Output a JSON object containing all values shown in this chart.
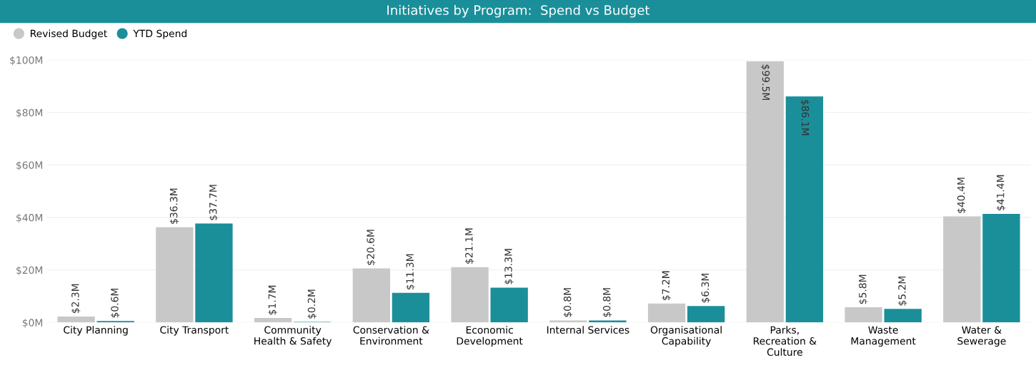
{
  "chart_data": {
    "type": "bar",
    "title": "Initiatives by Program:  Spend vs Budget",
    "categories": [
      "City Planning",
      "City Transport",
      "Community\nHealth & Safety",
      "Conservation &\nEnvironment",
      "Economic\nDevelopment",
      "Internal Services",
      "Organisational\nCapability",
      "Parks,\nRecreation &\nCulture",
      "Waste\nManagement",
      "Water &\nSewerage"
    ],
    "series": [
      {
        "name": "Revised Budget",
        "color": "#c8c8c8",
        "values": [
          2.3,
          36.3,
          1.7,
          20.6,
          21.1,
          0.8,
          7.2,
          99.5,
          5.8,
          40.4
        ],
        "value_labels": [
          "$2.3M",
          "$36.3M",
          "$1.7M",
          "$20.6M",
          "$21.1M",
          "$0.8M",
          "$7.2M",
          "$99.5M",
          "$5.8M",
          "$40.4M"
        ]
      },
      {
        "name": "YTD Spend",
        "color": "#1a8f9a",
        "values": [
          0.6,
          37.7,
          0.2,
          11.3,
          13.3,
          0.8,
          6.3,
          86.1,
          5.2,
          41.4
        ],
        "value_labels": [
          "$0.6M",
          "$37.7M",
          "$0.2M",
          "$11.3M",
          "$13.3M",
          "$0.8M",
          "$6.3M",
          "$86.1M",
          "$5.2M",
          "$41.4M"
        ]
      }
    ],
    "ylim": [
      0,
      100
    ],
    "yticks": [
      {
        "value": 0,
        "label": "$0M"
      },
      {
        "value": 20,
        "label": "$20M"
      },
      {
        "value": 40,
        "label": "$40M"
      },
      {
        "value": 60,
        "label": "$60M"
      },
      {
        "value": 80,
        "label": "$80M"
      },
      {
        "value": 100,
        "label": "$100M"
      }
    ],
    "grid": "y",
    "legend": "top left",
    "marker": "circle"
  }
}
